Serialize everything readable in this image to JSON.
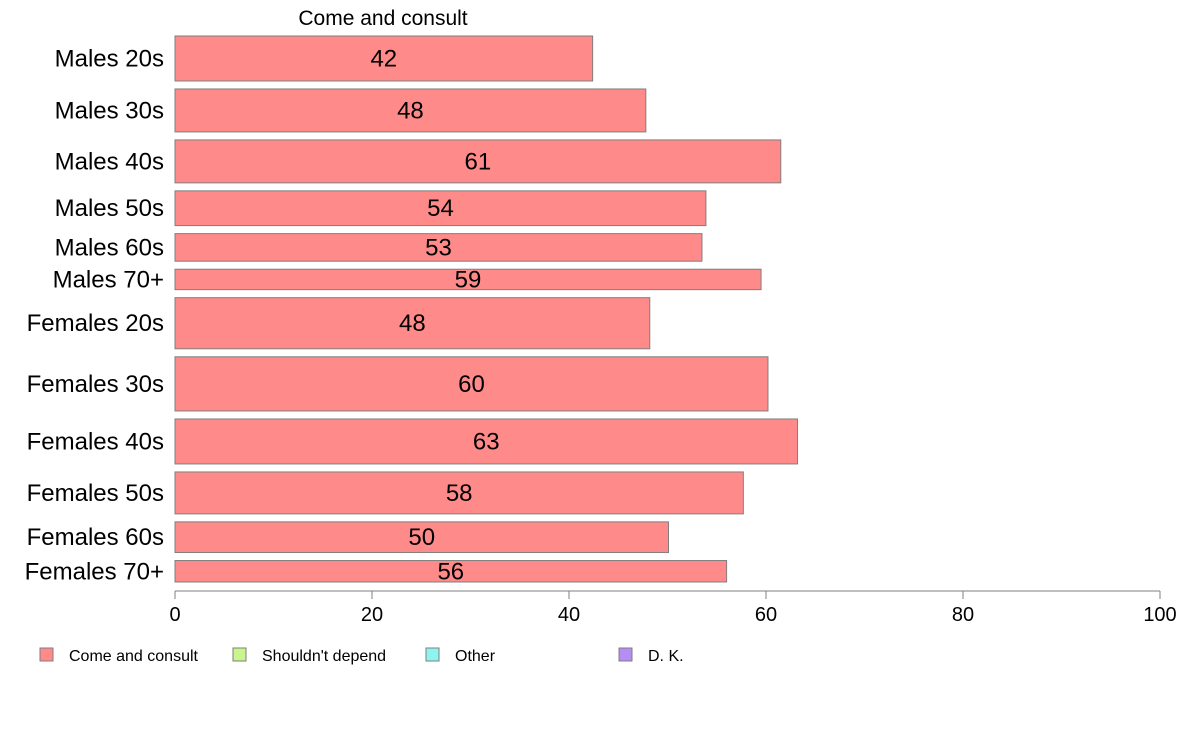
{
  "chart_data": {
    "type": "bar",
    "orientation": "horizontal",
    "title": "Come and consult",
    "categories": [
      "Males 20s",
      "Males 30s",
      "Males 40s",
      "Males 50s",
      "Males 60s",
      "Males 70+",
      "Females 20s",
      "Females 30s",
      "Females 40s",
      "Females 50s",
      "Females 60s",
      "Females 70+"
    ],
    "series": [
      {
        "name": "Come and consult",
        "values": [
          42,
          48,
          61,
          54,
          53,
          59,
          48,
          60,
          63,
          58,
          50,
          56
        ]
      }
    ],
    "data_labels": [
      "42",
      "48",
      "61",
      "54",
      "53",
      "59",
      "48",
      "60",
      "63",
      "58",
      "50",
      "56"
    ],
    "bar_widths": [
      42.4,
      47.8,
      61.5,
      53.9,
      53.5,
      59.5,
      48.2,
      60.2,
      63.2,
      57.7,
      50.1,
      56.0
    ],
    "bar_thickness_relative": [
      44,
      42,
      42,
      34,
      27,
      20,
      50,
      53,
      44,
      41,
      30,
      21
    ],
    "xlim": [
      0,
      100
    ],
    "xticks": [
      0,
      20,
      40,
      60,
      80,
      100
    ],
    "grid": false,
    "legend": {
      "position": "bottom-left",
      "entries": [
        {
          "label": "Come and consult",
          "color": "#FF8A8A"
        },
        {
          "label": "Shouldn't depend",
          "color": "#C8F58C"
        },
        {
          "label": "Other",
          "color": "#8CF5F0"
        },
        {
          "label": "D. K.",
          "color": "#B68CF5"
        }
      ]
    },
    "colors": {
      "bar": "#FF8A8A",
      "bar_stroke": "#7f7f7f",
      "axis": "#7f7f7f"
    }
  }
}
